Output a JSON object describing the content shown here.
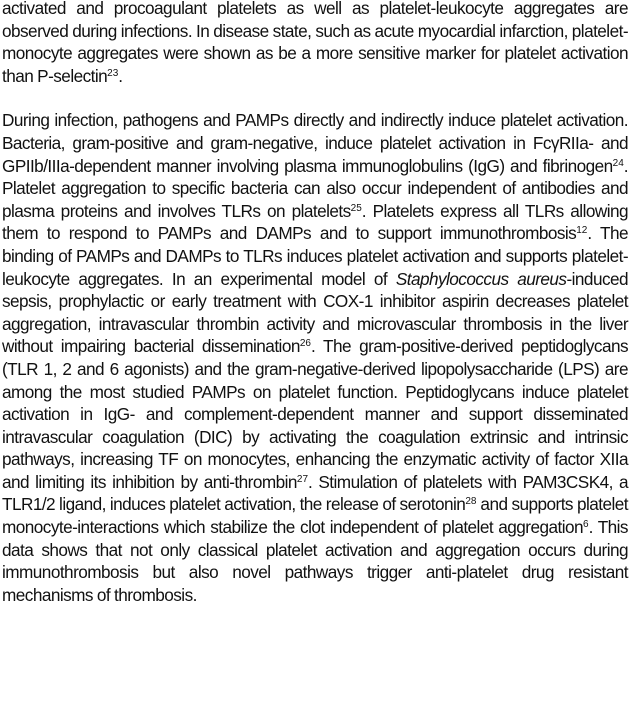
{
  "paragraphs": [
    [
      {
        "t": "activated and procoagulant platelets as well as platelet-leukocyte aggregates are observed during infections. In disease state, such as acute myocardial infarction, platelet-monocyte aggregates were shown as be a more sensitive marker for platelet activation than P-selectin"
      },
      {
        "sup": "23"
      },
      {
        "t": "."
      }
    ],
    [
      {
        "t": "During infection, pathogens and PAMPs directly and indirectly induce platelet activation. Bacteria, gram-positive and gram-negative, induce platelet activation in FcγRIIa- and GPIIb/IIIa-dependent manner involving plasma immunoglobulins (IgG) and fibrinogen"
      },
      {
        "sup": "24"
      },
      {
        "t": ". Platelet aggregation to specific bacteria can also occur independent of antibodies and plasma proteins and involves TLRs on platelets"
      },
      {
        "sup": "25"
      },
      {
        "t": ". Platelets express all TLRs allowing them to respond to PAMPs and DAMPs and to support immunothrombosis"
      },
      {
        "sup": "12"
      },
      {
        "t": ". The binding of PAMPs and DAMPs to TLRs induces platelet activation and supports platelet-leukocyte aggregates. In an experimental model of "
      },
      {
        "em": "Staphylococcus aureus"
      },
      {
        "t": "-induced sepsis, prophylactic or early treatment with COX-1 inhibitor aspirin decreases platelet aggregation, intravascular thrombin activity and microvascular thrombosis in the liver without impairing bacterial dissemination"
      },
      {
        "sup": "26"
      },
      {
        "t": ". The gram-positive-derived peptidoglycans (TLR 1, 2 and 6 agonists) and the gram-negative-derived lipopolysaccharide (LPS) are among the most studied PAMPs on platelet function. Peptidoglycans induce platelet activation in IgG- and complement-dependent manner and support disseminated intravascular coagulation (DIC) by activating the coagulation extrinsic and intrinsic pathways, increasing TF on monocytes, enhancing the enzymatic activity of factor XIIa and limiting its inhibition by anti-thrombin"
      },
      {
        "sup": "27"
      },
      {
        "t": ". Stimulation of platelets with PAM3CSK4, a TLR1/2 ligand, induces platelet activation, the release of serotonin"
      },
      {
        "sup": "28"
      },
      {
        "t": " and supports platelet monocyte-interactions which stabilize the clot independent of platelet aggregation"
      },
      {
        "sup": "6"
      },
      {
        "t": ". This data shows that not only classical platelet activation and aggregation occurs during immunothrombosis but also novel pathways trigger anti-platelet drug resistant mechanisms of thrombosis."
      }
    ]
  ]
}
